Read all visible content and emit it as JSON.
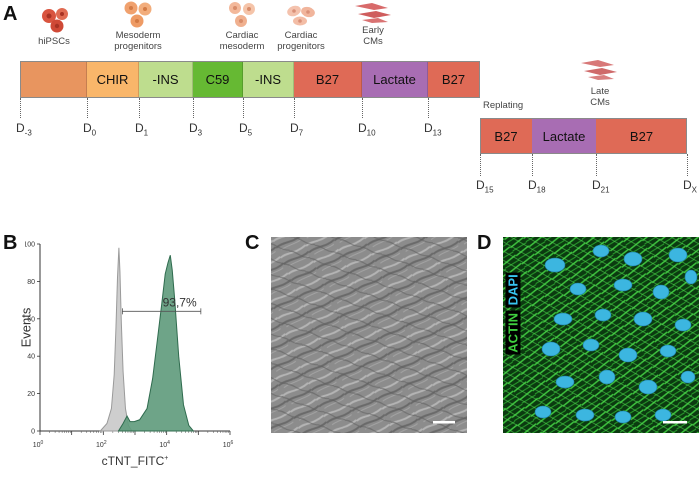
{
  "panels": {
    "a": "A",
    "b": "B",
    "c": "C",
    "d": "D"
  },
  "stages": {
    "hipscs": "hiPSCs",
    "mesoderm": [
      "Mesoderm",
      "progenitors"
    ],
    "cardiac_mesoderm": [
      "Cardiac",
      "mesoderm"
    ],
    "cardiac_prog": [
      "Cardiac",
      "progenitors"
    ],
    "early": [
      "Early",
      "CMs"
    ],
    "late": [
      "Late",
      "CMs"
    ],
    "replating": "Replating"
  },
  "protocol": [
    {
      "label": "",
      "color": "#e8955f"
    },
    {
      "label": "CHIR",
      "color": "#f9b66a"
    },
    {
      "label": "-INS",
      "color": "#bedd8e"
    },
    {
      "label": "C59",
      "color": "#66b933"
    },
    {
      "label": "-INS",
      "color": "#bedd8e"
    },
    {
      "label": "B27",
      "color": "#df6a56"
    },
    {
      "label": "Lactate",
      "color": "#a86db3"
    },
    {
      "label": "B27",
      "color": "#df6a56"
    }
  ],
  "protocol2": [
    {
      "label": "B27",
      "color": "#df6a56"
    },
    {
      "label": "Lactate",
      "color": "#a86db3"
    },
    {
      "label": "B27",
      "color": "#df6a56"
    }
  ],
  "days1": [
    {
      "d": "D",
      "s": "-3"
    },
    {
      "d": "D",
      "s": "0"
    },
    {
      "d": "D",
      "s": "1"
    },
    {
      "d": "D",
      "s": "3"
    },
    {
      "d": "D",
      "s": "5"
    },
    {
      "d": "D",
      "s": "7"
    },
    {
      "d": "D",
      "s": "10"
    },
    {
      "d": "D",
      "s": "13"
    }
  ],
  "days2": [
    {
      "d": "D",
      "s": "15"
    },
    {
      "d": "D",
      "s": "18"
    },
    {
      "d": "D",
      "s": "21"
    },
    {
      "d": "D",
      "s": "X"
    }
  ],
  "chart_data": {
    "type": "area",
    "xlabel": "cTNT_FITC",
    "xlabel_sup": "+",
    "ylabel": "Events",
    "xscale": "log",
    "xlim": [
      1,
      1000000
    ],
    "ylim": [
      0,
      100
    ],
    "yticks": [
      0,
      20,
      40,
      60,
      80,
      100
    ],
    "xtick_labels": [
      {
        "b": "10",
        "e": "0"
      },
      {
        "b": "10",
        "e": "2"
      },
      {
        "b": "10",
        "e": "4"
      },
      {
        "b": "10",
        "e": "6"
      }
    ],
    "gate_label": "93,7%",
    "gate_range": [
      400,
      120000
    ],
    "series": [
      {
        "color": "#c9c9c9",
        "stroke": "#9a9a9a",
        "points": [
          [
            80,
            0
          ],
          [
            130,
            4
          ],
          [
            180,
            12
          ],
          [
            220,
            30
          ],
          [
            250,
            55
          ],
          [
            280,
            82
          ],
          [
            310,
            98
          ],
          [
            335,
            85
          ],
          [
            370,
            58
          ],
          [
            420,
            32
          ],
          [
            500,
            12
          ],
          [
            620,
            3
          ],
          [
            800,
            0
          ]
        ]
      },
      {
        "color": "#5e9a7b",
        "stroke": "#2f6b4e",
        "points": [
          [
            300,
            0
          ],
          [
            420,
            4
          ],
          [
            560,
            8
          ],
          [
            700,
            5
          ],
          [
            950,
            5
          ],
          [
            1400,
            6
          ],
          [
            2400,
            12
          ],
          [
            3600,
            28
          ],
          [
            5200,
            50
          ],
          [
            7000,
            68
          ],
          [
            9000,
            84
          ],
          [
            11000,
            90
          ],
          [
            13000,
            94
          ],
          [
            15000,
            86
          ],
          [
            18000,
            70
          ],
          [
            24000,
            40
          ],
          [
            34000,
            14
          ],
          [
            50000,
            3
          ],
          [
            70000,
            0
          ]
        ]
      }
    ]
  },
  "image_c": {
    "scale_bar": "true"
  },
  "image_d": {
    "actin": "ACTIN",
    "dapi": "DAPI"
  }
}
